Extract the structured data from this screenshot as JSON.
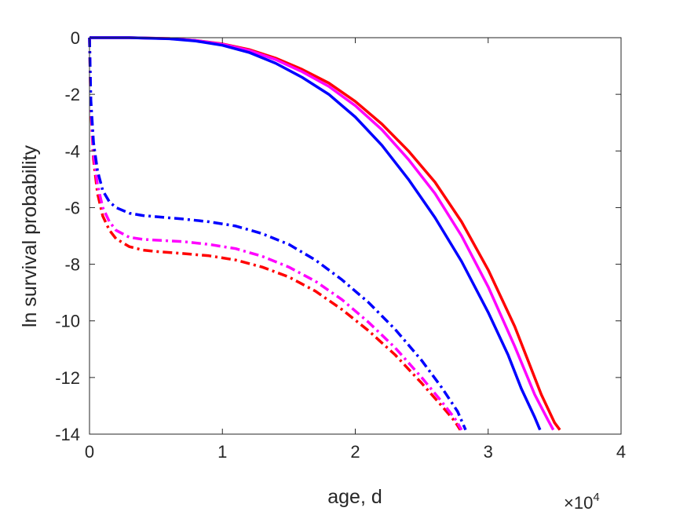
{
  "chart_data": {
    "type": "line",
    "title": "",
    "xlabel": "age, d",
    "ylabel": "ln survival probability",
    "x_exponent_label": {
      "base": "×10",
      "exp": "4"
    },
    "xlim": [
      0,
      40000
    ],
    "ylim": [
      -14,
      0
    ],
    "x_ticks": [
      0,
      10000,
      20000,
      30000,
      40000
    ],
    "x_tick_labels": [
      "0",
      "1",
      "2",
      "3",
      "4"
    ],
    "y_ticks": [
      0,
      -2,
      -4,
      -6,
      -8,
      -10,
      -12,
      -14
    ],
    "y_tick_labels": [
      "0",
      "-2",
      "-4",
      "-6",
      "-8",
      "-10",
      "-12",
      "-14"
    ],
    "grid": false,
    "series": [
      {
        "color": "#ff0000",
        "style": "solid",
        "x": [
          0,
          3000,
          6000,
          8000,
          10000,
          12000,
          14000,
          16000,
          18000,
          20000,
          22000,
          24000,
          26000,
          28000,
          30000,
          32000,
          34000,
          35000,
          35400
        ],
        "y": [
          0,
          0,
          -0.03,
          -0.1,
          -0.22,
          -0.42,
          -0.72,
          -1.12,
          -1.6,
          -2.25,
          -3.05,
          -4.0,
          -5.1,
          -6.5,
          -8.2,
          -10.2,
          -12.6,
          -13.6,
          -13.85
        ]
      },
      {
        "color": "#ff00ff",
        "style": "solid",
        "x": [
          0,
          3000,
          6000,
          8000,
          10000,
          12000,
          14000,
          16000,
          18000,
          20000,
          22000,
          24000,
          26000,
          28000,
          30000,
          32000,
          33500,
          34500,
          34900
        ],
        "y": [
          0,
          0,
          -0.03,
          -0.1,
          -0.23,
          -0.45,
          -0.77,
          -1.2,
          -1.72,
          -2.4,
          -3.25,
          -4.3,
          -5.5,
          -7.0,
          -8.8,
          -10.9,
          -12.6,
          -13.5,
          -13.85
        ]
      },
      {
        "color": "#0000ff",
        "style": "solid",
        "x": [
          0,
          3000,
          6000,
          8000,
          10000,
          12000,
          14000,
          16000,
          18000,
          20000,
          22000,
          24000,
          26000,
          28000,
          30000,
          31500,
          32500,
          33500,
          33900
        ],
        "y": [
          0,
          0,
          -0.04,
          -0.12,
          -0.27,
          -0.52,
          -0.9,
          -1.4,
          -2.0,
          -2.8,
          -3.8,
          -5.0,
          -6.35,
          -7.9,
          -9.7,
          -11.2,
          -12.4,
          -13.4,
          -13.85
        ]
      },
      {
        "color": "#ff0000",
        "style": "dashdot",
        "x": [
          0,
          100,
          300,
          600,
          1000,
          1500,
          2000,
          3000,
          4000,
          5000,
          7000,
          9000,
          11000,
          13000,
          15000,
          17000,
          19000,
          21000,
          23000,
          25000,
          26500,
          27500,
          27900
        ],
        "y": [
          0,
          -2.5,
          -4.3,
          -5.5,
          -6.3,
          -6.8,
          -7.1,
          -7.38,
          -7.5,
          -7.55,
          -7.62,
          -7.7,
          -7.85,
          -8.1,
          -8.45,
          -8.95,
          -9.6,
          -10.35,
          -11.2,
          -12.2,
          -13.0,
          -13.55,
          -13.85
        ]
      },
      {
        "color": "#ff00ff",
        "style": "dashdot",
        "x": [
          0,
          100,
          300,
          600,
          1000,
          1500,
          2000,
          3000,
          4000,
          5000,
          7000,
          9000,
          11000,
          13000,
          15000,
          17000,
          19000,
          21000,
          23000,
          25000,
          26500,
          27500,
          28000
        ],
        "y": [
          0,
          -2.4,
          -4.1,
          -5.2,
          -6.0,
          -6.5,
          -6.8,
          -7.05,
          -7.12,
          -7.15,
          -7.2,
          -7.3,
          -7.45,
          -7.72,
          -8.1,
          -8.6,
          -9.25,
          -10.05,
          -10.95,
          -12.0,
          -12.85,
          -13.45,
          -13.85
        ]
      },
      {
        "color": "#0000ff",
        "style": "dashdot",
        "x": [
          0,
          100,
          300,
          600,
          1000,
          1500,
          2000,
          3000,
          4000,
          5000,
          7000,
          9000,
          11000,
          13000,
          15000,
          17000,
          19000,
          21000,
          23000,
          25000,
          26500,
          27700,
          28300
        ],
        "y": [
          0,
          -2.2,
          -3.7,
          -4.7,
          -5.4,
          -5.8,
          -6.0,
          -6.2,
          -6.28,
          -6.32,
          -6.4,
          -6.5,
          -6.65,
          -6.92,
          -7.3,
          -7.85,
          -8.55,
          -9.35,
          -10.3,
          -11.4,
          -12.35,
          -13.2,
          -13.85
        ]
      }
    ]
  }
}
